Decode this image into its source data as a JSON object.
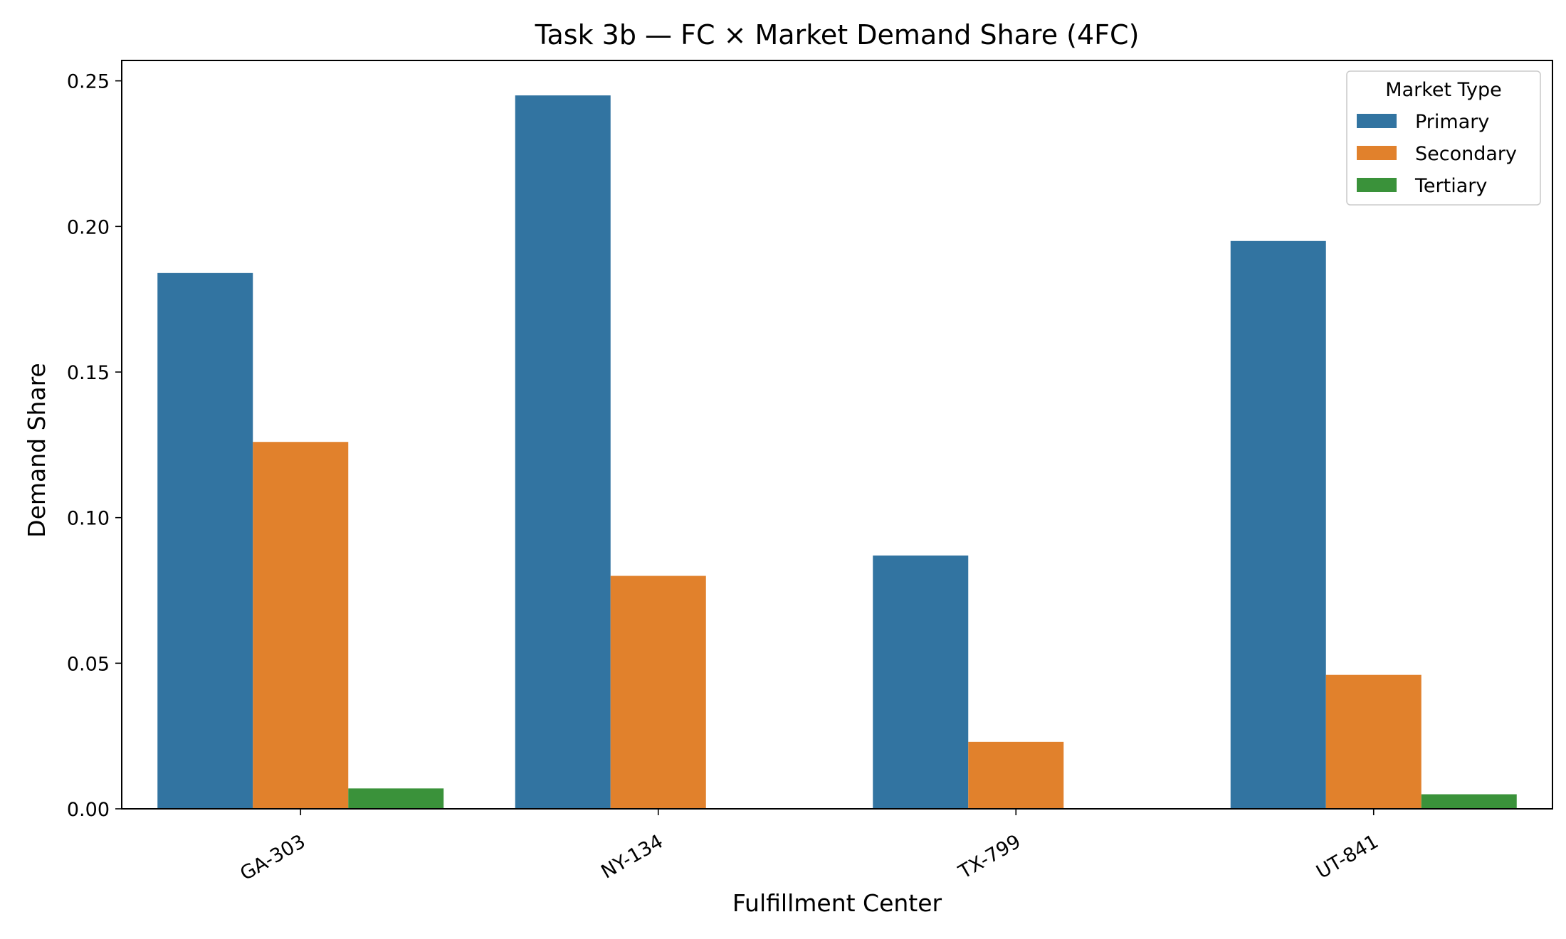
{
  "chart_data": {
    "type": "bar",
    "title": "Task 3b — FC × Market Demand Share (4FC)",
    "xlabel": "Fulfillment Center",
    "ylabel": "Demand Share",
    "categories": [
      "GA-303",
      "NY-134",
      "TX-799",
      "UT-841"
    ],
    "series": [
      {
        "name": "Primary",
        "color": "#3274a1",
        "values": [
          0.184,
          0.245,
          0.087,
          0.195
        ]
      },
      {
        "name": "Secondary",
        "color": "#e1812c",
        "values": [
          0.126,
          0.08,
          0.023,
          0.046
        ]
      },
      {
        "name": "Tertiary",
        "color": "#3a923a",
        "values": [
          0.007,
          0.0,
          0.0,
          0.005
        ]
      }
    ],
    "ylim": [
      0,
      0.257
    ],
    "yticks": [
      0.0,
      0.05,
      0.1,
      0.15,
      0.2,
      0.25
    ],
    "ytick_labels": [
      "0.00",
      "0.05",
      "0.10",
      "0.15",
      "0.20",
      "0.25"
    ],
    "grid": false,
    "legend": {
      "title": "Market Type",
      "placement": "top-right"
    }
  }
}
